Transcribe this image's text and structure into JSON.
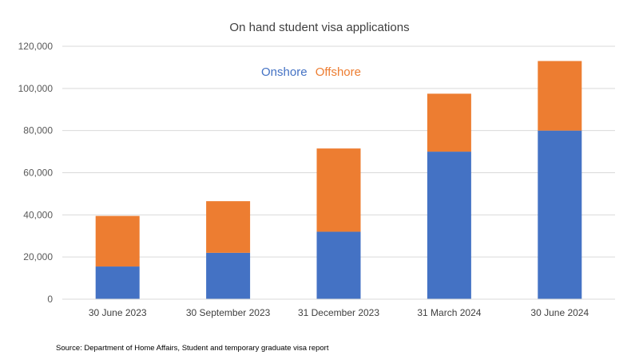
{
  "chart_data": {
    "type": "bar",
    "stacked": true,
    "title": "On hand student visa applications",
    "categories": [
      "30 June 2023",
      "30 September 2023",
      "31 December 2023",
      "31 March 2024",
      "30 June 2024"
    ],
    "series": [
      {
        "name": "Onshore",
        "values": [
          15500,
          22000,
          32000,
          70000,
          80000
        ],
        "color": "#4472C4"
      },
      {
        "name": "Offshore",
        "values": [
          24000,
          24500,
          39500,
          27500,
          33000
        ],
        "color": "#ED7D31"
      }
    ],
    "ylim": [
      0,
      120000
    ],
    "yticks": [
      0,
      20000,
      40000,
      60000,
      80000,
      100000,
      120000
    ],
    "ytick_labels": [
      "0",
      "20,000",
      "40,000",
      "60,000",
      "80,000",
      "100,000",
      "120,000"
    ],
    "grid": true,
    "legend_position": "top-left"
  },
  "source": "Source: Department of Home Affairs, Student and temporary graduate visa report"
}
